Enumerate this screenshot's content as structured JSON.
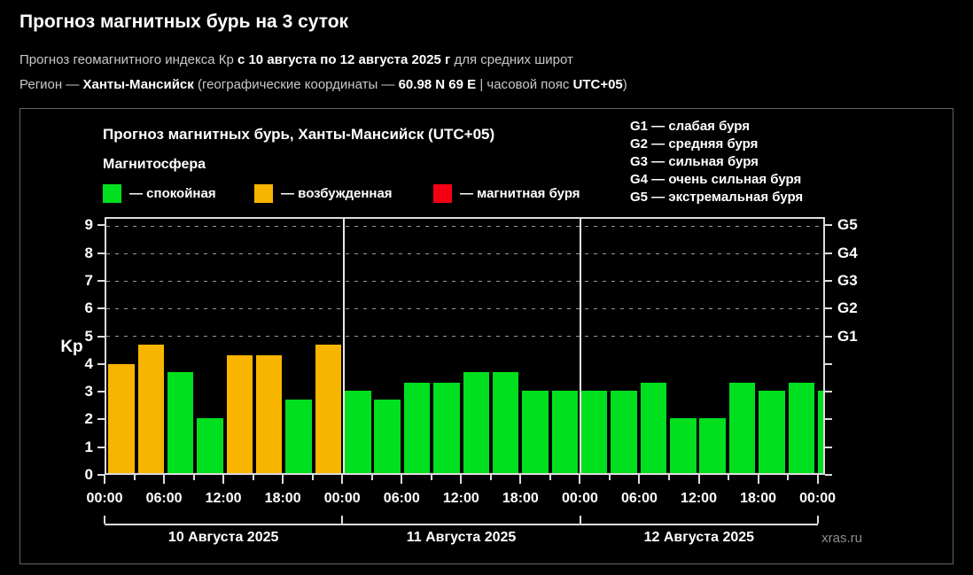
{
  "page": {
    "title": "Прогноз магнитных бурь на 3 суток",
    "subtitle": {
      "prefix": "Прогноз геомагнитного индекса Кр ",
      "period": "с 10 августа по 12 августа 2025 г",
      "suffix": " для средних широт"
    },
    "region": {
      "label": "Регион — ",
      "name": "Ханты-Мансийск",
      "coords_prefix": " (географические координаты — ",
      "coords": "60.98 N 69 E",
      "tz_prefix": " | часовой пояс ",
      "tz": "UTC+05",
      "close": ")"
    },
    "watermark": "xras.ru"
  },
  "chart": {
    "title": "Прогноз магнитных бурь, Ханты-Мансийск (UTC+05)",
    "legend_title": "Магнитосфера",
    "legend": [
      {
        "key": "quiet",
        "label": "— спокойная",
        "color": "#00e01e"
      },
      {
        "key": "excited",
        "label": "— возбужденная",
        "color": "#f8b500"
      },
      {
        "key": "storm",
        "label": "— магнитная буря",
        "color": "#f40012"
      }
    ],
    "g_scale_legend": [
      "G1 — слабая буря",
      "G2 — средняя буря",
      "G3 — сильная буря",
      "G4 — очень сильная буря",
      "G5 — экстремальная буря"
    ]
  },
  "chart_data": {
    "type": "bar",
    "title": "Прогноз магнитных бурь, Ханты-Мансийск (UTC+05)",
    "ylabel": "Kp",
    "ylim": [
      0,
      9
    ],
    "y_headroom": 0.3,
    "yticks": [
      0,
      1,
      2,
      3,
      4,
      5,
      6,
      7,
      8,
      9
    ],
    "grid_levels_kp": [
      5,
      6,
      7,
      8,
      9
    ],
    "right_axis": {
      "labels": [
        "G1",
        "G2",
        "G3",
        "G4",
        "G5"
      ],
      "at_kp": [
        5,
        6,
        7,
        8,
        9
      ]
    },
    "x_time_labels": [
      "00:00",
      "06:00",
      "12:00",
      "18:00",
      "00:00",
      "06:00",
      "12:00",
      "18:00",
      "00:00",
      "06:00",
      "12:00",
      "18:00",
      "00:00"
    ],
    "interval_hours": 3,
    "days": [
      {
        "date": "10 Августа 2025",
        "values": [
          4.0,
          4.7,
          3.7,
          2.0,
          4.3,
          4.3,
          2.7,
          4.7
        ],
        "status": [
          "excited",
          "excited",
          "quiet",
          "quiet",
          "excited",
          "excited",
          "quiet",
          "excited"
        ]
      },
      {
        "date": "11 Августа 2025",
        "values": [
          3.0,
          2.7,
          3.3,
          3.3,
          3.7,
          3.7,
          3.0,
          3.0
        ],
        "status": [
          "quiet",
          "quiet",
          "quiet",
          "quiet",
          "quiet",
          "quiet",
          "quiet",
          "quiet"
        ]
      },
      {
        "date": "12 Августа 2025",
        "values": [
          3.0,
          3.0,
          3.3,
          2.0,
          2.0,
          3.3,
          3.0,
          3.3
        ],
        "status": [
          "quiet",
          "quiet",
          "quiet",
          "quiet",
          "quiet",
          "quiet",
          "quiet",
          "quiet"
        ]
      }
    ],
    "next_interval_partial": {
      "value": 3.0,
      "status": "quiet"
    },
    "legend_position": "top",
    "grid": "dashed horizontal at G levels only"
  }
}
